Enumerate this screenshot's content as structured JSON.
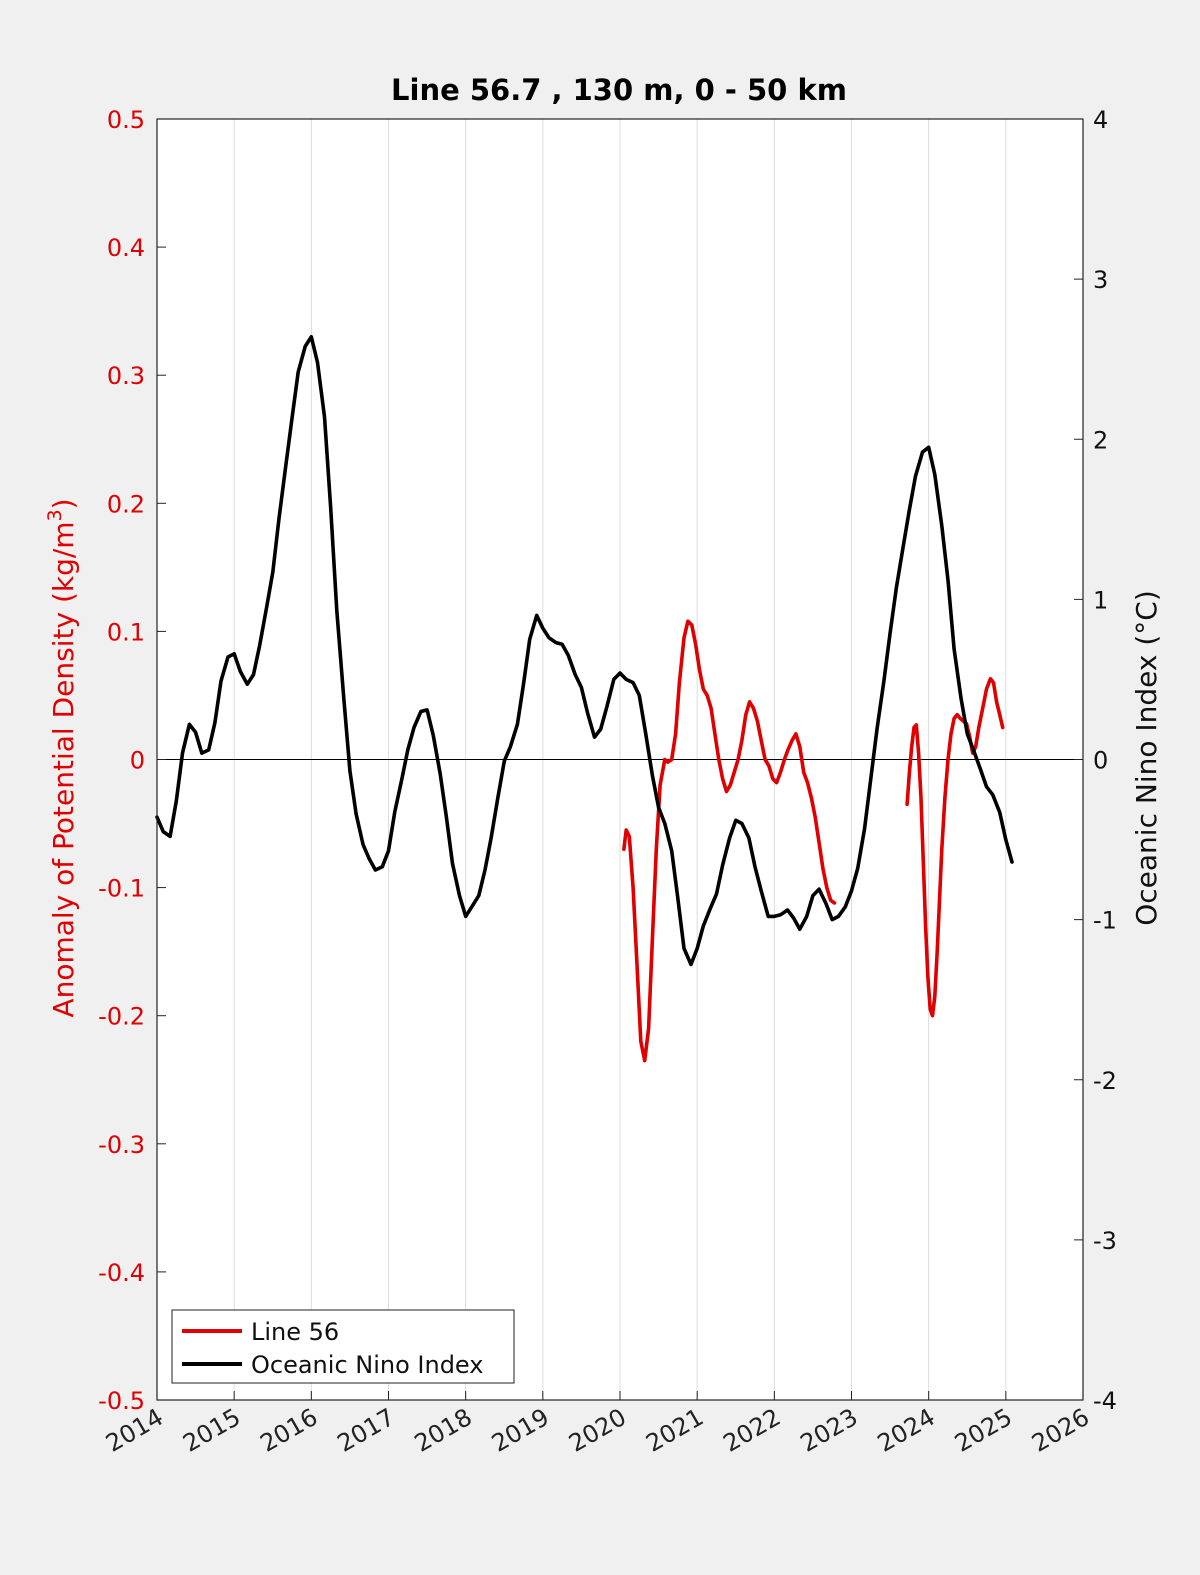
{
  "chart_data": {
    "type": "line",
    "title": "Line 56.7 , 130 m, 0 - 50 km",
    "ylabel_left": "Anomaly of Potential Density (kg/m",
    "ylabel_left_sup": "3",
    "ylabel_left_close": ")",
    "ylabel_right": "Oceanic Nino Index (°C)",
    "xlim": [
      2014,
      2026
    ],
    "ylim_left": [
      -0.5,
      0.5
    ],
    "ylim_right": [
      -4,
      4
    ],
    "x_ticks": [
      "2014",
      "2015",
      "2016",
      "2017",
      "2018",
      "2019",
      "2020",
      "2021",
      "2022",
      "2023",
      "2024",
      "2025",
      "2026"
    ],
    "y_left_ticks": [
      "0.5",
      "0.4",
      "0.3",
      "0.2",
      "0.1",
      "0",
      "-0.1",
      "-0.2",
      "-0.3",
      "-0.4",
      "-0.5"
    ],
    "y_right_ticks": [
      "4",
      "3",
      "2",
      "1",
      "0",
      "-1",
      "-2",
      "-3",
      "-4"
    ],
    "grid": "vertical",
    "legend_position": "bottom-left",
    "series": [
      {
        "name": "Line 56",
        "axis": "left",
        "color": "#e00000",
        "segments": [
          [
            [
              2020.05,
              -0.07
            ],
            [
              2020.08,
              -0.055
            ],
            [
              2020.12,
              -0.06
            ],
            [
              2020.17,
              -0.1
            ],
            [
              2020.22,
              -0.16
            ],
            [
              2020.27,
              -0.22
            ],
            [
              2020.32,
              -0.235
            ],
            [
              2020.37,
              -0.21
            ],
            [
              2020.42,
              -0.14
            ],
            [
              2020.47,
              -0.07
            ],
            [
              2020.52,
              -0.02
            ],
            [
              2020.58,
              0.0
            ],
            [
              2020.62,
              -0.002
            ],
            [
              2020.67,
              0.0
            ],
            [
              2020.72,
              0.02
            ],
            [
              2020.77,
              0.06
            ],
            [
              2020.83,
              0.095
            ],
            [
              2020.88,
              0.108
            ],
            [
              2020.93,
              0.105
            ],
            [
              2020.98,
              0.09
            ],
            [
              2021.03,
              0.07
            ],
            [
              2021.08,
              0.055
            ],
            [
              2021.13,
              0.05
            ],
            [
              2021.18,
              0.04
            ],
            [
              2021.23,
              0.02
            ],
            [
              2021.28,
              0.0
            ],
            [
              2021.33,
              -0.015
            ],
            [
              2021.38,
              -0.025
            ],
            [
              2021.43,
              -0.02
            ],
            [
              2021.48,
              -0.01
            ],
            [
              2021.53,
              0.0
            ],
            [
              2021.58,
              0.015
            ],
            [
              2021.63,
              0.035
            ],
            [
              2021.68,
              0.045
            ],
            [
              2021.73,
              0.04
            ],
            [
              2021.78,
              0.03
            ],
            [
              2021.83,
              0.015
            ],
            [
              2021.88,
              0.0
            ],
            [
              2021.93,
              -0.005
            ],
            [
              2021.98,
              -0.015
            ],
            [
              2022.03,
              -0.018
            ],
            [
              2022.08,
              -0.01
            ],
            [
              2022.13,
              0.0
            ],
            [
              2022.18,
              0.008
            ],
            [
              2022.23,
              0.015
            ],
            [
              2022.28,
              0.02
            ],
            [
              2022.33,
              0.01
            ],
            [
              2022.38,
              -0.01
            ],
            [
              2022.43,
              -0.018
            ],
            [
              2022.48,
              -0.03
            ],
            [
              2022.53,
              -0.045
            ],
            [
              2022.58,
              -0.065
            ],
            [
              2022.63,
              -0.085
            ],
            [
              2022.68,
              -0.1
            ],
            [
              2022.73,
              -0.11
            ],
            [
              2022.78,
              -0.112
            ]
          ],
          [
            [
              2023.72,
              -0.035
            ],
            [
              2023.75,
              -0.01
            ],
            [
              2023.78,
              0.01
            ],
            [
              2023.81,
              0.025
            ],
            [
              2023.84,
              0.027
            ],
            [
              2023.87,
              0.005
            ],
            [
              2023.9,
              -0.03
            ],
            [
              2023.93,
              -0.08
            ],
            [
              2023.96,
              -0.13
            ],
            [
              2023.99,
              -0.17
            ],
            [
              2024.02,
              -0.195
            ],
            [
              2024.05,
              -0.2
            ],
            [
              2024.08,
              -0.185
            ],
            [
              2024.11,
              -0.15
            ],
            [
              2024.14,
              -0.11
            ],
            [
              2024.17,
              -0.07
            ],
            [
              2024.21,
              -0.03
            ],
            [
              2024.25,
              0.0
            ],
            [
              2024.29,
              0.02
            ],
            [
              2024.33,
              0.032
            ],
            [
              2024.37,
              0.035
            ],
            [
              2024.41,
              0.032
            ],
            [
              2024.45,
              0.03
            ],
            [
              2024.49,
              0.028
            ],
            [
              2024.53,
              0.018
            ],
            [
              2024.57,
              0.005
            ],
            [
              2024.61,
              0.01
            ],
            [
              2024.65,
              0.025
            ],
            [
              2024.7,
              0.04
            ],
            [
              2024.75,
              0.055
            ],
            [
              2024.8,
              0.063
            ],
            [
              2024.84,
              0.06
            ],
            [
              2024.88,
              0.045
            ],
            [
              2024.92,
              0.035
            ],
            [
              2024.96,
              0.025
            ]
          ]
        ]
      },
      {
        "name": "Oceanic Nino Index",
        "axis": "right",
        "color": "#000000",
        "segments": [
          [
            [
              2014.0,
              -0.36
            ],
            [
              2014.08,
              -0.45
            ],
            [
              2014.17,
              -0.48
            ],
            [
              2014.25,
              -0.26
            ],
            [
              2014.33,
              0.04
            ],
            [
              2014.42,
              0.22
            ],
            [
              2014.5,
              0.17
            ],
            [
              2014.58,
              0.04
            ],
            [
              2014.67,
              0.06
            ],
            [
              2014.75,
              0.23
            ],
            [
              2014.83,
              0.49
            ],
            [
              2014.92,
              0.64
            ],
            [
              2015.0,
              0.66
            ],
            [
              2015.08,
              0.55
            ],
            [
              2015.17,
              0.47
            ],
            [
              2015.25,
              0.53
            ],
            [
              2015.33,
              0.71
            ],
            [
              2015.42,
              0.95
            ],
            [
              2015.5,
              1.17
            ],
            [
              2015.58,
              1.5
            ],
            [
              2015.67,
              1.84
            ],
            [
              2015.75,
              2.13
            ],
            [
              2015.83,
              2.42
            ],
            [
              2015.92,
              2.58
            ],
            [
              2016.0,
              2.64
            ],
            [
              2016.08,
              2.48
            ],
            [
              2016.17,
              2.14
            ],
            [
              2016.25,
              1.58
            ],
            [
              2016.33,
              0.93
            ],
            [
              2016.42,
              0.39
            ],
            [
              2016.5,
              -0.07
            ],
            [
              2016.58,
              -0.34
            ],
            [
              2016.67,
              -0.53
            ],
            [
              2016.75,
              -0.62
            ],
            [
              2016.83,
              -0.69
            ],
            [
              2016.92,
              -0.67
            ],
            [
              2017.0,
              -0.57
            ],
            [
              2017.08,
              -0.33
            ],
            [
              2017.17,
              -0.13
            ],
            [
              2017.25,
              0.06
            ],
            [
              2017.33,
              0.2
            ],
            [
              2017.42,
              0.3
            ],
            [
              2017.5,
              0.31
            ],
            [
              2017.58,
              0.15
            ],
            [
              2017.67,
              -0.09
            ],
            [
              2017.75,
              -0.36
            ],
            [
              2017.83,
              -0.65
            ],
            [
              2017.92,
              -0.85
            ],
            [
              2018.0,
              -0.98
            ],
            [
              2018.08,
              -0.92
            ],
            [
              2018.17,
              -0.85
            ],
            [
              2018.25,
              -0.69
            ],
            [
              2018.33,
              -0.49
            ],
            [
              2018.42,
              -0.23
            ],
            [
              2018.5,
              -0.01
            ],
            [
              2018.58,
              0.08
            ],
            [
              2018.67,
              0.22
            ],
            [
              2018.75,
              0.47
            ],
            [
              2018.83,
              0.75
            ],
            [
              2018.92,
              0.9
            ],
            [
              2019.0,
              0.82
            ],
            [
              2019.08,
              0.76
            ],
            [
              2019.17,
              0.73
            ],
            [
              2019.25,
              0.72
            ],
            [
              2019.33,
              0.65
            ],
            [
              2019.42,
              0.53
            ],
            [
              2019.5,
              0.45
            ],
            [
              2019.58,
              0.29
            ],
            [
              2019.67,
              0.14
            ],
            [
              2019.75,
              0.19
            ],
            [
              2019.83,
              0.33
            ],
            [
              2019.92,
              0.5
            ],
            [
              2020.0,
              0.54
            ],
            [
              2020.08,
              0.5
            ],
            [
              2020.17,
              0.48
            ],
            [
              2020.25,
              0.4
            ],
            [
              2020.33,
              0.17
            ],
            [
              2020.42,
              -0.1
            ],
            [
              2020.5,
              -0.3
            ],
            [
              2020.58,
              -0.4
            ],
            [
              2020.67,
              -0.57
            ],
            [
              2020.75,
              -0.87
            ],
            [
              2020.83,
              -1.18
            ],
            [
              2020.92,
              -1.28
            ],
            [
              2021.0,
              -1.18
            ],
            [
              2021.08,
              -1.04
            ],
            [
              2021.17,
              -0.93
            ],
            [
              2021.25,
              -0.84
            ],
            [
              2021.33,
              -0.66
            ],
            [
              2021.42,
              -0.49
            ],
            [
              2021.5,
              -0.38
            ],
            [
              2021.58,
              -0.4
            ],
            [
              2021.67,
              -0.49
            ],
            [
              2021.75,
              -0.67
            ],
            [
              2021.83,
              -0.82
            ],
            [
              2021.92,
              -0.98
            ],
            [
              2022.0,
              -0.98
            ],
            [
              2022.08,
              -0.97
            ],
            [
              2022.17,
              -0.94
            ],
            [
              2022.25,
              -0.99
            ],
            [
              2022.33,
              -1.06
            ],
            [
              2022.42,
              -0.98
            ],
            [
              2022.5,
              -0.85
            ],
            [
              2022.58,
              -0.81
            ],
            [
              2022.67,
              -0.9
            ],
            [
              2022.75,
              -1.0
            ],
            [
              2022.83,
              -0.98
            ],
            [
              2022.92,
              -0.92
            ],
            [
              2023.0,
              -0.82
            ],
            [
              2023.08,
              -0.68
            ],
            [
              2023.17,
              -0.43
            ],
            [
              2023.25,
              -0.12
            ],
            [
              2023.33,
              0.19
            ],
            [
              2023.42,
              0.49
            ],
            [
              2023.5,
              0.79
            ],
            [
              2023.58,
              1.07
            ],
            [
              2023.67,
              1.33
            ],
            [
              2023.75,
              1.56
            ],
            [
              2023.83,
              1.77
            ],
            [
              2023.92,
              1.92
            ],
            [
              2024.0,
              1.95
            ],
            [
              2024.08,
              1.78
            ],
            [
              2024.17,
              1.46
            ],
            [
              2024.25,
              1.12
            ],
            [
              2024.33,
              0.69
            ],
            [
              2024.42,
              0.38
            ],
            [
              2024.5,
              0.16
            ],
            [
              2024.58,
              0.06
            ],
            [
              2024.67,
              -0.06
            ],
            [
              2024.75,
              -0.17
            ],
            [
              2024.83,
              -0.22
            ],
            [
              2024.92,
              -0.33
            ],
            [
              2025.0,
              -0.5
            ],
            [
              2025.08,
              -0.64
            ]
          ]
        ]
      }
    ]
  }
}
